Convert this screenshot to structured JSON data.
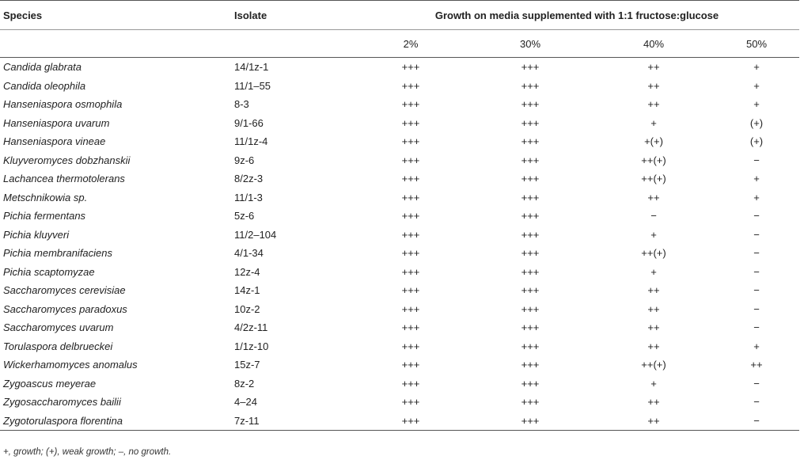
{
  "headers": {
    "species": "Species",
    "isolate": "Isolate",
    "growth": "Growth on media supplemented with 1:1 fructose:glucose",
    "concentrations": [
      "2%",
      "30%",
      "40%",
      "50%"
    ]
  },
  "rows": [
    {
      "species": "Candida glabrata",
      "isolate": "14/1z-1",
      "v": [
        "+++",
        "+++",
        "++",
        "+"
      ]
    },
    {
      "species": "Candida oleophila",
      "isolate": "11/1–55",
      "v": [
        "+++",
        "+++",
        "++",
        "+"
      ]
    },
    {
      "species": "Hanseniaspora osmophila",
      "isolate": "8-3",
      "v": [
        "+++",
        "+++",
        "++",
        "+"
      ]
    },
    {
      "species": "Hanseniaspora uvarum",
      "isolate": "9/1-66",
      "v": [
        "+++",
        "+++",
        "+",
        "(+)"
      ]
    },
    {
      "species": "Hanseniaspora vineae",
      "isolate": "11/1z-4",
      "v": [
        "+++",
        "+++",
        "+(+)",
        "(+)"
      ]
    },
    {
      "species": "Kluyveromyces dobzhanskii",
      "isolate": "9z-6",
      "v": [
        "+++",
        "+++",
        "++(+)",
        "−"
      ]
    },
    {
      "species": "Lachancea thermotolerans",
      "isolate": "8/2z-3",
      "v": [
        "+++",
        "+++",
        "++(+)",
        "+"
      ]
    },
    {
      "species": "Metschnikowia sp.",
      "isolate": "11/1-3",
      "v": [
        "+++",
        "+++",
        "++",
        "+"
      ]
    },
    {
      "species": "Pichia fermentans",
      "isolate": "5z-6",
      "v": [
        "+++",
        "+++",
        "−",
        "−"
      ]
    },
    {
      "species": "Pichia kluyveri",
      "isolate": "11/2–104",
      "v": [
        "+++",
        "+++",
        "+",
        "−"
      ]
    },
    {
      "species": "Pichia membranifaciens",
      "isolate": "4/1-34",
      "v": [
        "+++",
        "+++",
        "++(+)",
        "−"
      ]
    },
    {
      "species": "Pichia scaptomyzae",
      "isolate": "12z-4",
      "v": [
        "+++",
        "+++",
        "+",
        "−"
      ]
    },
    {
      "species": "Saccharomyces cerevisiae",
      "isolate": "14z-1",
      "v": [
        "+++",
        "+++",
        "++",
        "−"
      ]
    },
    {
      "species": "Saccharomyces paradoxus",
      "isolate": "10z-2",
      "v": [
        "+++",
        "+++",
        "++",
        "−"
      ]
    },
    {
      "species": "Saccharomyces uvarum",
      "isolate": "4/2z-11",
      "v": [
        "+++",
        "+++",
        "++",
        "−"
      ]
    },
    {
      "species": "Torulaspora delbrueckei",
      "isolate": "1/1z-10",
      "v": [
        "+++",
        "+++",
        "++",
        "+"
      ]
    },
    {
      "species": "Wickerhamomyces anomalus",
      "isolate": "15z-7",
      "v": [
        "+++",
        "+++",
        "++(+)",
        "++"
      ]
    },
    {
      "species": "Zygoascus meyerae",
      "isolate": "8z-2",
      "v": [
        "+++",
        "+++",
        "+",
        "−"
      ]
    },
    {
      "species": "Zygosaccharomyces bailii",
      "isolate": "4–24",
      "v": [
        "+++",
        "+++",
        "++",
        "−"
      ]
    },
    {
      "species": "Zygotorulaspora florentina",
      "isolate": "7z-11",
      "v": [
        "+++",
        "+++",
        "++",
        "−"
      ]
    }
  ],
  "footnote": "+, growth; (+), weak growth; –, no growth."
}
